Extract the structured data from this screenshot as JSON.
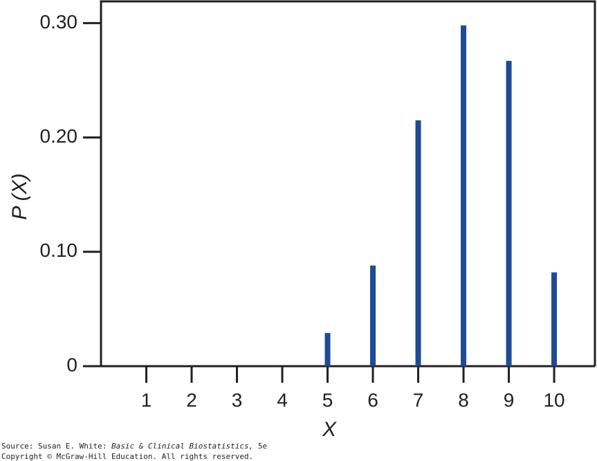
{
  "chart_data": {
    "type": "bar",
    "x_label": "X",
    "y_label": "P (X)",
    "x": [
      1,
      2,
      3,
      4,
      5,
      6,
      7,
      8,
      9,
      10
    ],
    "values": [
      0,
      0,
      0,
      0,
      0.029,
      0.088,
      0.215,
      0.298,
      0.267,
      0.082
    ],
    "color": "#1f4a96",
    "xlim": [
      0,
      10.9
    ],
    "xticks": [
      1,
      2,
      3,
      4,
      5,
      6,
      7,
      8,
      9,
      10
    ],
    "ylim": [
      0,
      0.319
    ],
    "yticks": [
      0,
      {
        "value": 0.1,
        "label": "0.10"
      },
      {
        "value": 0.2,
        "label": "0.20"
      },
      {
        "value": 0.3,
        "label": "0.30"
      }
    ],
    "grid": false
  },
  "footer": {
    "source": [
      "Source: Susan E. White: ",
      "Basic & Clinical Biostatistics,",
      " 5e"
    ],
    "copyright": "Copyright © McGraw-Hill Education. All rights reserved."
  }
}
